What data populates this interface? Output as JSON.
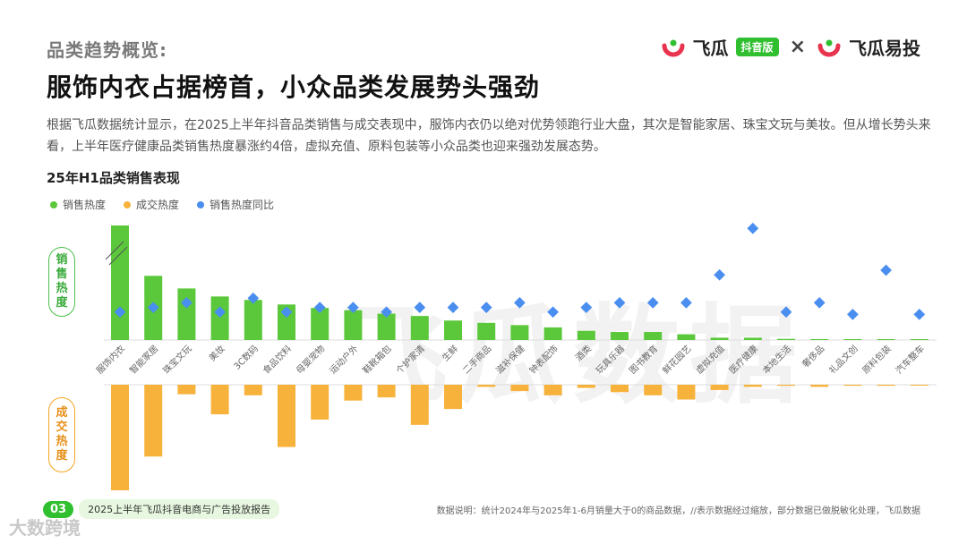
{
  "header": {
    "kicker": "品类趋势概览:",
    "headline": "服饰内衣占据榜首，小众品类发展势头强劲",
    "intro": "根据飞瓜数据统计显示，在2025上半年抖音品类销售与成交表现中，服饰内衣仍以绝对优势领跑行业大盘，其次是智能家居、珠宝文玩与美妆。但从增长势头来看，上半年医疗健康品类销售热度暴涨约4倍，虚拟充值、原料包装等小众品类也迎来强劲发展态势。"
  },
  "brand": {
    "name1": "飞瓜",
    "badge": "抖音版",
    "times": "×",
    "name2": "飞瓜易投",
    "logo_icon": "feigua-logo-icon"
  },
  "chart_title": "25年H1品类销售表现",
  "legend": {
    "sales": "销售热度",
    "deal": "成交热度",
    "yoy": "销售热度同比"
  },
  "side_labels": {
    "sales": [
      "销",
      "售",
      "热",
      "度"
    ],
    "deal": [
      "成",
      "交",
      "热",
      "度"
    ]
  },
  "colors": {
    "sales": "#5ac83a",
    "deal": "#f7b23b",
    "yoy": "#4a8ef0",
    "accent_green": "#2fbf2f"
  },
  "chart_data": {
    "type": "bar",
    "categories": [
      "服饰内衣",
      "智能家居",
      "珠宝文玩",
      "美妆",
      "3C数码",
      "食品饮料",
      "母婴宠物",
      "运动户外",
      "鞋靴箱包",
      "个护家清",
      "生鲜",
      "二手商品",
      "滋补保健",
      "钟表配饰",
      "酒类",
      "玩具乐器",
      "图书教育",
      "鲜花园艺",
      "虚拟充值",
      "医疗健康",
      "本地生活",
      "奢侈品",
      "礼品文创",
      "原料包装",
      "汽车整车"
    ],
    "series": [
      {
        "name": "销售热度",
        "values": [
          100,
          56,
          45,
          38,
          35,
          31,
          28,
          26,
          23,
          21,
          17,
          15,
          13,
          11,
          8,
          7,
          7,
          5,
          2,
          2,
          1,
          0.8,
          0.5,
          0.5,
          0.3
        ]
      },
      {
        "name": "成交热度",
        "values": [
          100,
          68,
          9,
          28,
          10,
          59,
          33,
          15,
          12,
          38,
          23,
          2,
          6,
          10,
          3,
          7,
          10,
          14,
          5,
          2,
          1,
          2,
          1,
          1,
          0.5
        ]
      },
      {
        "name": "销售热度同比",
        "values": [
          0.6,
          0.7,
          0.8,
          0.6,
          0.9,
          0.6,
          0.7,
          0.7,
          0.6,
          0.7,
          0.7,
          0.7,
          0.8,
          0.6,
          0.7,
          0.8,
          0.8,
          0.8,
          1.4,
          2.4,
          0.6,
          0.8,
          0.55,
          1.5,
          0.55
        ]
      }
    ],
    "annotations": [
      "//"
    ]
  },
  "footer": {
    "page_no": "03",
    "report": "2025上半年飞瓜抖音电商与广告投放报告",
    "note": "数据说明：统计2024年与2025年1-6月销量大于0的商品数据，//表示数据经过缩放，部分数据已做脱敏化处理，飞瓜数据",
    "corner": "大数跨境"
  },
  "watermark": "飞瓜数据"
}
